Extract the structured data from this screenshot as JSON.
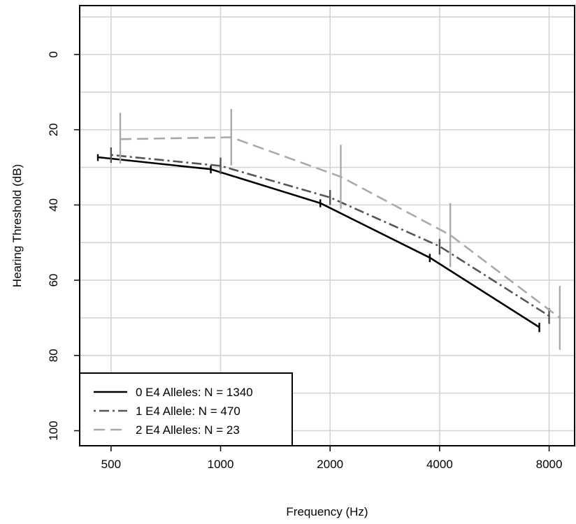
{
  "chart_data": {
    "type": "line",
    "xlabel": "Frequency (Hz)",
    "ylabel": "Hearing Threshold (dB)",
    "x_scale": "log2",
    "xlim": [
      410,
      9400
    ],
    "ylim": [
      -13,
      104
    ],
    "y_reversed": true,
    "x_ticks": [
      500,
      1000,
      2000,
      4000,
      8000
    ],
    "x_tick_labels": [
      "500",
      "1000",
      "2000",
      "4000",
      "8000"
    ],
    "y_ticks": [
      0,
      20,
      40,
      60,
      80,
      100
    ],
    "y_tick_labels": [
      "0",
      "20",
      "40",
      "60",
      "80",
      "100"
    ],
    "grid": true,
    "legend_position": "bottom-left",
    "series": [
      {
        "name": "0 E4 Alleles: N = 1340",
        "color": "#000000",
        "dash": "solid",
        "x": [
          460,
          940,
          1880,
          3760,
          7520
        ],
        "y": [
          27.3,
          30.5,
          39.5,
          54.0,
          72.5
        ],
        "err_low": [
          26.5,
          29.5,
          38.5,
          53.0,
          71.3
        ],
        "err_high": [
          28.3,
          31.6,
          40.6,
          55.2,
          73.8
        ]
      },
      {
        "name": "1 E4 Allele: N = 470",
        "color": "#555555",
        "dash": "dotdash",
        "x": [
          500,
          1000,
          2000,
          4000,
          8000
        ],
        "y": [
          26.7,
          29.6,
          38.0,
          51.0,
          69.5
        ],
        "err_low": [
          24.7,
          27.4,
          36.0,
          49.0,
          67.4
        ],
        "err_high": [
          28.8,
          31.8,
          40.0,
          53.2,
          71.6
        ]
      },
      {
        "name": "2 E4 Alleles: N = 23",
        "color": "#a9a9a9",
        "dash": "dashed",
        "x": [
          530,
          1070,
          2140,
          4280,
          8560
        ],
        "y": [
          22.5,
          22.0,
          32.5,
          48.0,
          70.0
        ],
        "err_low": [
          15.5,
          14.5,
          24.0,
          39.5,
          61.5
        ],
        "err_high": [
          29.0,
          29.5,
          41.0,
          56.5,
          78.5
        ]
      }
    ]
  }
}
